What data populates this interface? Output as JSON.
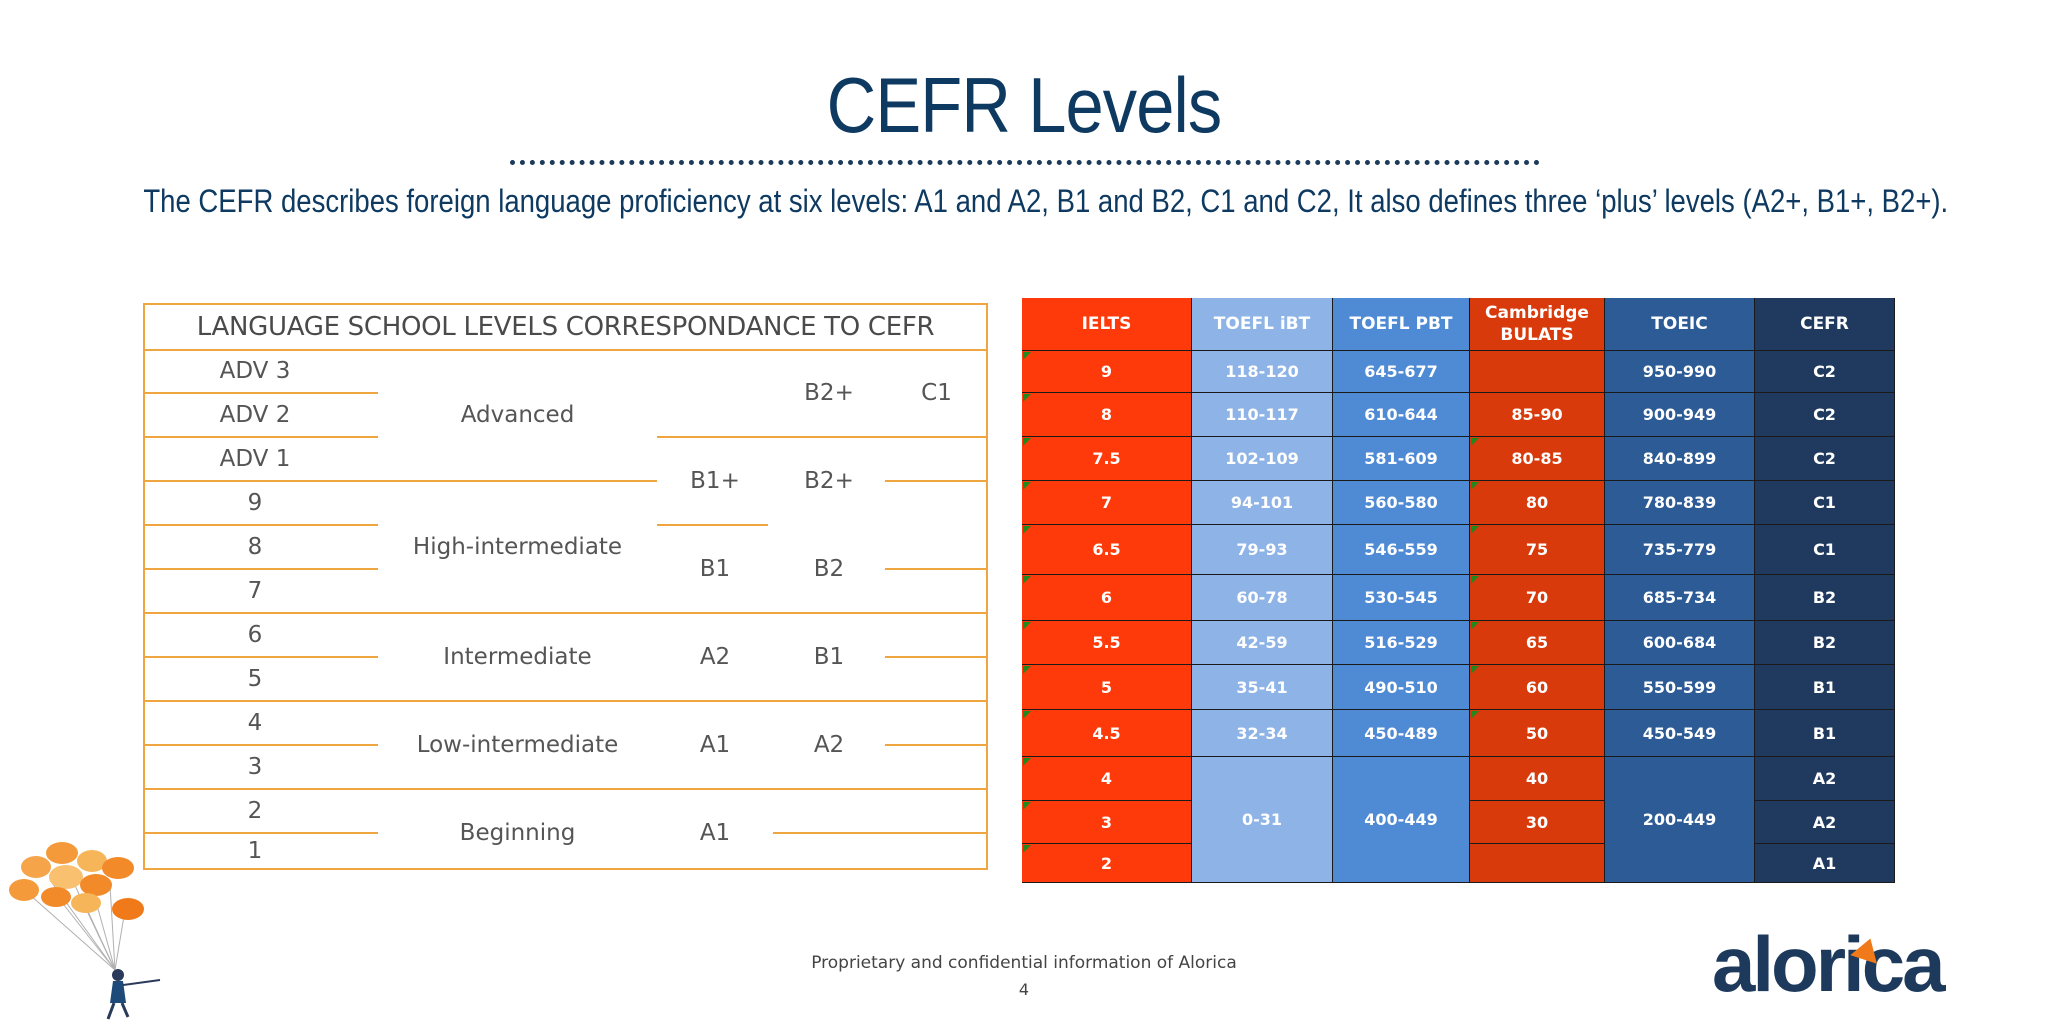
{
  "title": "CEFR Levels",
  "subtitle": "The CEFR describes foreign language proficiency at six levels: A1 and A2, B1 and B2, C1 and C2, It also defines three ‘plus’ levels (A2+, B1+, B2+).",
  "left_table": {
    "heading": "LANGUAGE SCHOOL LEVELS CORRESPONDANCE TO CEFR",
    "levels": [
      "ADV 3",
      "ADV 2",
      "ADV 1",
      "9",
      "8",
      "7",
      "6",
      "5",
      "4",
      "3",
      "2",
      "1"
    ],
    "groups": [
      "Advanced",
      "High-intermediate",
      "Intermediate",
      "Low-intermediate",
      "Beginning"
    ],
    "cefr_a": [
      "B2+",
      "C1",
      "B1+",
      "B2+",
      "B1",
      "B2",
      "A2",
      "B1",
      "A1",
      "A2",
      "A1"
    ]
  },
  "right_table": {
    "headers": [
      "IELTS",
      "TOEFL iBT",
      "TOEFL PBT",
      "Cambridge BULATS",
      "TOEIC",
      "CEFR"
    ],
    "ielts": [
      "9",
      "8",
      "7.5",
      "7",
      "6.5",
      "6",
      "5.5",
      "5",
      "4.5",
      "4",
      "3",
      "2"
    ],
    "toefl_ibt": [
      "118-120",
      "110-117",
      "102-109",
      "94-101",
      "79-93",
      "60-78",
      "42-59",
      "35-41",
      "32-34",
      "0-31"
    ],
    "toefl_pbt": [
      "645-677",
      "610-644",
      "581-609",
      "560-580",
      "546-559",
      "530-545",
      "516-529",
      "490-510",
      "450-489",
      "400-449"
    ],
    "bulats": [
      "",
      "85-90",
      "80-85",
      "80",
      "75",
      "70",
      "65",
      "60",
      "50",
      "40",
      "30",
      ""
    ],
    "toeic": [
      "950-990",
      "900-949",
      "840-899",
      "780-839",
      "735-779",
      "685-734",
      "600-684",
      "550-599",
      "450-549",
      "200-449"
    ],
    "cefr": [
      "C2",
      "C2",
      "C2",
      "C1",
      "C1",
      "B2",
      "B2",
      "B1",
      "B1",
      "A2",
      "A2",
      "A1"
    ]
  },
  "colors": {
    "ielts": "#ff3a0a",
    "toefl_ibt": "#8eb3e6",
    "toefl_pbt": "#4f8ad4",
    "bulats": "#d83a0c",
    "toeic": "#2d5b95",
    "cefr": "#1f3a5e",
    "orange_line": "#f0a640",
    "title": "#0e3a61"
  },
  "footer": {
    "text": "Proprietary and confidential information of Alorica",
    "page": "4"
  },
  "logo": "alorica"
}
